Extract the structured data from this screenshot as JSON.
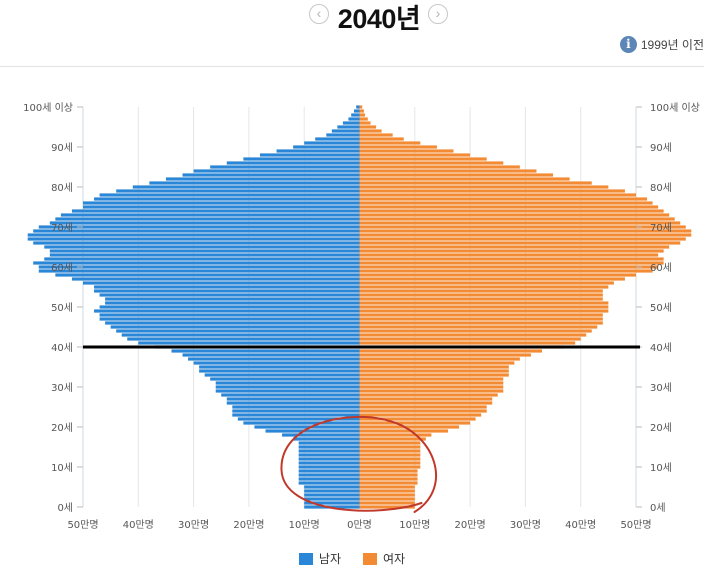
{
  "header": {
    "year": "2040년",
    "prev_icon": "chevron-left-icon",
    "next_icon": "chevron-right-icon",
    "before_label": "1999년 이전",
    "info_icon": "i"
  },
  "chart_data": {
    "type": "bar",
    "subtype": "population-pyramid",
    "unit": "만명",
    "age_min": 0,
    "age_max": 100,
    "x_range": [
      -50,
      50
    ],
    "y_tick_labels": [
      "0세",
      "10세",
      "20세",
      "30세",
      "40세",
      "50세",
      "60세",
      "70세",
      "80세",
      "90세",
      "100세 이상"
    ],
    "x_tick_labels": [
      "50만명",
      "40만명",
      "30만명",
      "20만명",
      "10만명",
      "0만명",
      "10만명",
      "20만명",
      "30만명",
      "40만명",
      "50만명"
    ],
    "series": [
      {
        "name": "남자",
        "color": "#2a86d6",
        "values": [
          10,
          10,
          10,
          10,
          10,
          10,
          11,
          11,
          11,
          11,
          11,
          11,
          11,
          11,
          11,
          11,
          11,
          12,
          14,
          17,
          19,
          21,
          22,
          23,
          23,
          23,
          24,
          24,
          25,
          26,
          26,
          26,
          27,
          28,
          29,
          29,
          30,
          31,
          32,
          34,
          37,
          40,
          42,
          43,
          44,
          45,
          46,
          47,
          47,
          48,
          47,
          46,
          46,
          47,
          48,
          48,
          50,
          52,
          55,
          58,
          58,
          59,
          57,
          56,
          56,
          57,
          59,
          60,
          60,
          59,
          58,
          56,
          55,
          54,
          52,
          50,
          50,
          48,
          47,
          44,
          41,
          38,
          35,
          32,
          30,
          27,
          24,
          21,
          18,
          15,
          12,
          10,
          8,
          6,
          5,
          4,
          3,
          2,
          1.5,
          1,
          0.6
        ]
      },
      {
        "name": "여자",
        "color": "#f38b35",
        "values": [
          10,
          10,
          10,
          10,
          10,
          10,
          10.5,
          10.5,
          10.5,
          10.5,
          11,
          11,
          11,
          11,
          11,
          11,
          11,
          12,
          13,
          16,
          18,
          20,
          21,
          22,
          23,
          23,
          24,
          24,
          25,
          26,
          26,
          26,
          26,
          27,
          27,
          27,
          28,
          29,
          31,
          33,
          37,
          39,
          40,
          41,
          42,
          43,
          44,
          44,
          44,
          45,
          45,
          45,
          44,
          44,
          44,
          45,
          46,
          48,
          50,
          53,
          54,
          55,
          55,
          54,
          55,
          56,
          58,
          59,
          60,
          60,
          59,
          58,
          57,
          56,
          55,
          54,
          53,
          52,
          50,
          48,
          45,
          42,
          38,
          35,
          32,
          29,
          26,
          23,
          20,
          17,
          14,
          11,
          8,
          6,
          4,
          3,
          2,
          1.5,
          1,
          0.8,
          0.5
        ]
      }
    ],
    "annotations": [
      {
        "type": "horizontal-line",
        "age": 40,
        "color": "#000000"
      },
      {
        "type": "circle",
        "age_from": 0,
        "age_to": 21,
        "color": "#c0392b"
      }
    ]
  },
  "legend": {
    "male_label": "남자",
    "female_label": "여자"
  }
}
